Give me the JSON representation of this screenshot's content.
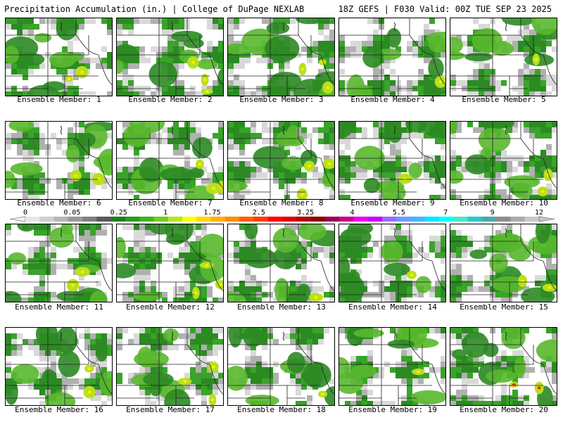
{
  "header": {
    "title_left": "Precipitation Accumulation (in.) | College of DuPage NEXLAB",
    "title_right": "18Z GEFS | F030 Valid: 00Z TUE SEP 23 2025"
  },
  "colorbar": {
    "labels": [
      "0",
      "0.05",
      "0.25",
      "1",
      "1.75",
      "2.5",
      "3.25",
      "4",
      "5.5",
      "7",
      "9",
      "12"
    ],
    "swatches": [
      "#e6e6e6",
      "#cfcfcf",
      "#b5b5b5",
      "#9a9a9a",
      "#808080",
      "#5a5a5a",
      "#1e7d1e",
      "#2e9a1e",
      "#3fb51e",
      "#6fcc1e",
      "#b5e61e",
      "#ffff00",
      "#ffd700",
      "#ffb000",
      "#ff8c00",
      "#ff6000",
      "#ff3a00",
      "#ff0000",
      "#dd0000",
      "#b40000",
      "#8c0000",
      "#9a005a",
      "#c8008c",
      "#ee00ee",
      "#c800ff",
      "#9a6aff",
      "#6f9aff",
      "#46b4ff",
      "#00e6ff",
      "#00ffff",
      "#46e6c8",
      "#28c8c8",
      "#46aaaa",
      "#8c8c8c",
      "#aaaaaa",
      "#c8c8c8"
    ]
  },
  "members": [
    {
      "label": "Ensemble Member: 1"
    },
    {
      "label": "Ensemble Member: 2"
    },
    {
      "label": "Ensemble Member: 3"
    },
    {
      "label": "Ensemble Member: 4"
    },
    {
      "label": "Ensemble Member: 5"
    },
    {
      "label": "Ensemble Member: 6"
    },
    {
      "label": "Ensemble Member: 7"
    },
    {
      "label": "Ensemble Member: 8"
    },
    {
      "label": "Ensemble Member: 9"
    },
    {
      "label": "Ensemble Member: 10"
    },
    {
      "label": "Ensemble Member: 11"
    },
    {
      "label": "Ensemble Member: 12"
    },
    {
      "label": "Ensemble Member: 13"
    },
    {
      "label": "Ensemble Member: 14"
    },
    {
      "label": "Ensemble Member: 15"
    },
    {
      "label": "Ensemble Member: 16"
    },
    {
      "label": "Ensemble Member: 17"
    },
    {
      "label": "Ensemble Member: 18"
    },
    {
      "label": "Ensemble Member: 19"
    },
    {
      "label": "Ensemble Member: 20"
    }
  ]
}
